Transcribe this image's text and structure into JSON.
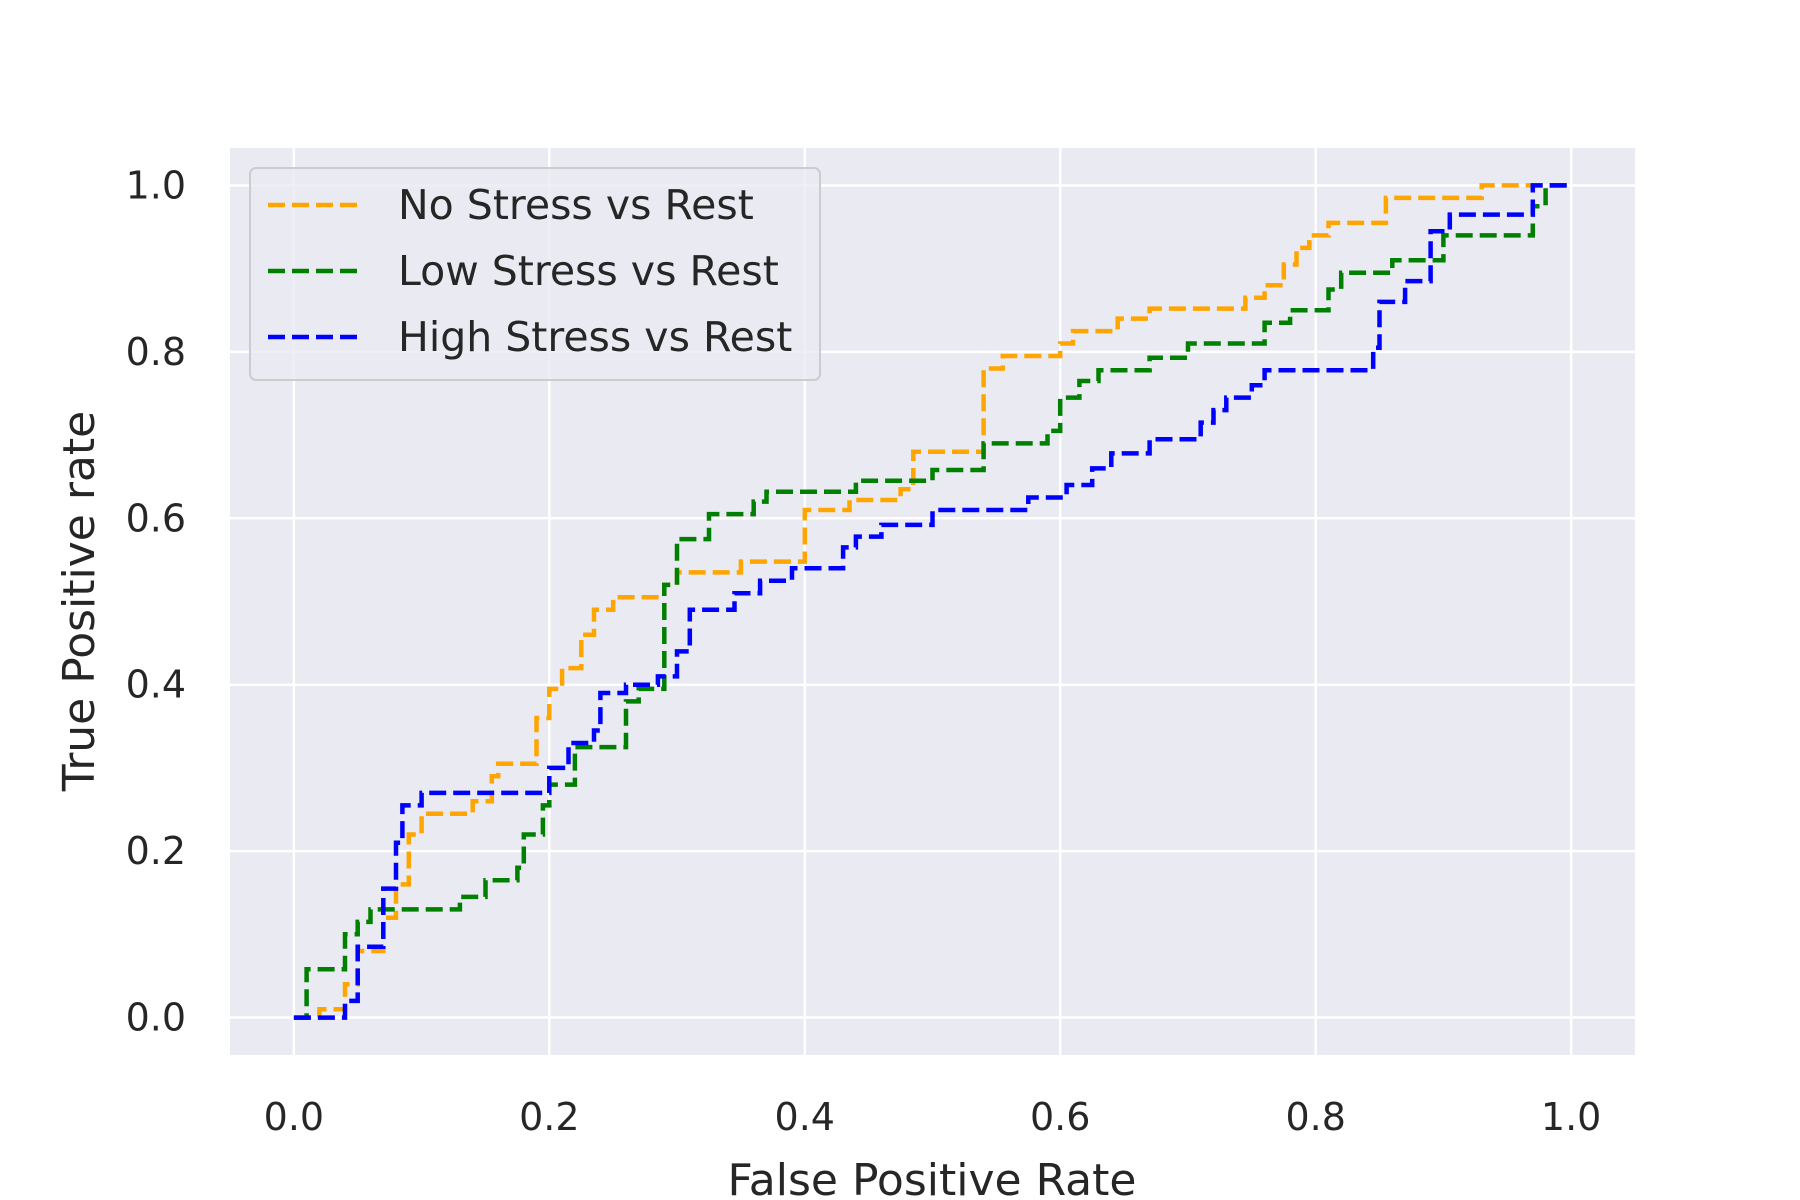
{
  "chart_data": {
    "type": "line",
    "title": "",
    "xlabel": "False Positive Rate",
    "ylabel": "True Positive rate",
    "xlim": [
      -0.05,
      1.05
    ],
    "ylim": [
      -0.045,
      1.045
    ],
    "xticks": [
      "0.0",
      "0.2",
      "0.4",
      "0.6",
      "0.8",
      "1.0"
    ],
    "yticks": [
      "0.0",
      "0.2",
      "0.4",
      "0.6",
      "0.8",
      "1.0"
    ],
    "grid": true,
    "legend_position": "top-left",
    "background": "#eaeaf2",
    "line_style": "dashed",
    "series": [
      {
        "name": "No Stress vs Rest",
        "color": "#ffa500",
        "points": [
          [
            0.0,
            0.0
          ],
          [
            0.02,
            0.0
          ],
          [
            0.02,
            0.01
          ],
          [
            0.04,
            0.01
          ],
          [
            0.04,
            0.04
          ],
          [
            0.05,
            0.04
          ],
          [
            0.05,
            0.08
          ],
          [
            0.07,
            0.08
          ],
          [
            0.07,
            0.12
          ],
          [
            0.08,
            0.12
          ],
          [
            0.08,
            0.16
          ],
          [
            0.09,
            0.16
          ],
          [
            0.09,
            0.22
          ],
          [
            0.1,
            0.22
          ],
          [
            0.1,
            0.245
          ],
          [
            0.14,
            0.245
          ],
          [
            0.14,
            0.26
          ],
          [
            0.155,
            0.26
          ],
          [
            0.155,
            0.29
          ],
          [
            0.16,
            0.29
          ],
          [
            0.16,
            0.305
          ],
          [
            0.19,
            0.305
          ],
          [
            0.19,
            0.36
          ],
          [
            0.2,
            0.36
          ],
          [
            0.2,
            0.395
          ],
          [
            0.21,
            0.395
          ],
          [
            0.21,
            0.42
          ],
          [
            0.225,
            0.42
          ],
          [
            0.225,
            0.46
          ],
          [
            0.235,
            0.46
          ],
          [
            0.235,
            0.49
          ],
          [
            0.25,
            0.49
          ],
          [
            0.25,
            0.505
          ],
          [
            0.29,
            0.505
          ],
          [
            0.29,
            0.52
          ],
          [
            0.3,
            0.52
          ],
          [
            0.3,
            0.535
          ],
          [
            0.35,
            0.535
          ],
          [
            0.35,
            0.548
          ],
          [
            0.4,
            0.548
          ],
          [
            0.4,
            0.61
          ],
          [
            0.435,
            0.61
          ],
          [
            0.435,
            0.622
          ],
          [
            0.475,
            0.622
          ],
          [
            0.475,
            0.635
          ],
          [
            0.485,
            0.635
          ],
          [
            0.485,
            0.68
          ],
          [
            0.54,
            0.68
          ],
          [
            0.54,
            0.78
          ],
          [
            0.555,
            0.78
          ],
          [
            0.555,
            0.795
          ],
          [
            0.6,
            0.795
          ],
          [
            0.6,
            0.81
          ],
          [
            0.61,
            0.81
          ],
          [
            0.61,
            0.825
          ],
          [
            0.645,
            0.825
          ],
          [
            0.645,
            0.84
          ],
          [
            0.67,
            0.84
          ],
          [
            0.67,
            0.852
          ],
          [
            0.745,
            0.852
          ],
          [
            0.745,
            0.865
          ],
          [
            0.76,
            0.865
          ],
          [
            0.76,
            0.88
          ],
          [
            0.775,
            0.88
          ],
          [
            0.775,
            0.905
          ],
          [
            0.785,
            0.905
          ],
          [
            0.785,
            0.925
          ],
          [
            0.795,
            0.925
          ],
          [
            0.795,
            0.94
          ],
          [
            0.81,
            0.94
          ],
          [
            0.81,
            0.955
          ],
          [
            0.855,
            0.955
          ],
          [
            0.855,
            0.985
          ],
          [
            0.93,
            0.985
          ],
          [
            0.93,
            1.0
          ],
          [
            1.0,
            1.0
          ]
        ]
      },
      {
        "name": "Low Stress vs Rest",
        "color": "#008000",
        "points": [
          [
            0.0,
            0.0
          ],
          [
            0.01,
            0.0
          ],
          [
            0.01,
            0.058
          ],
          [
            0.04,
            0.058
          ],
          [
            0.04,
            0.1
          ],
          [
            0.05,
            0.1
          ],
          [
            0.05,
            0.115
          ],
          [
            0.06,
            0.115
          ],
          [
            0.06,
            0.13
          ],
          [
            0.13,
            0.13
          ],
          [
            0.13,
            0.145
          ],
          [
            0.15,
            0.145
          ],
          [
            0.15,
            0.165
          ],
          [
            0.175,
            0.165
          ],
          [
            0.175,
            0.18
          ],
          [
            0.18,
            0.18
          ],
          [
            0.18,
            0.22
          ],
          [
            0.195,
            0.22
          ],
          [
            0.195,
            0.255
          ],
          [
            0.2,
            0.255
          ],
          [
            0.2,
            0.28
          ],
          [
            0.22,
            0.28
          ],
          [
            0.22,
            0.325
          ],
          [
            0.26,
            0.325
          ],
          [
            0.26,
            0.38
          ],
          [
            0.27,
            0.38
          ],
          [
            0.27,
            0.395
          ],
          [
            0.29,
            0.395
          ],
          [
            0.29,
            0.52
          ],
          [
            0.3,
            0.52
          ],
          [
            0.3,
            0.575
          ],
          [
            0.325,
            0.575
          ],
          [
            0.325,
            0.605
          ],
          [
            0.36,
            0.605
          ],
          [
            0.36,
            0.62
          ],
          [
            0.37,
            0.62
          ],
          [
            0.37,
            0.632
          ],
          [
            0.44,
            0.632
          ],
          [
            0.44,
            0.645
          ],
          [
            0.5,
            0.645
          ],
          [
            0.5,
            0.658
          ],
          [
            0.54,
            0.658
          ],
          [
            0.54,
            0.69
          ],
          [
            0.59,
            0.69
          ],
          [
            0.59,
            0.705
          ],
          [
            0.6,
            0.705
          ],
          [
            0.6,
            0.745
          ],
          [
            0.615,
            0.745
          ],
          [
            0.615,
            0.765
          ],
          [
            0.63,
            0.765
          ],
          [
            0.63,
            0.778
          ],
          [
            0.67,
            0.778
          ],
          [
            0.67,
            0.793
          ],
          [
            0.7,
            0.793
          ],
          [
            0.7,
            0.81
          ],
          [
            0.76,
            0.81
          ],
          [
            0.76,
            0.835
          ],
          [
            0.78,
            0.835
          ],
          [
            0.78,
            0.85
          ],
          [
            0.81,
            0.85
          ],
          [
            0.81,
            0.875
          ],
          [
            0.82,
            0.875
          ],
          [
            0.82,
            0.895
          ],
          [
            0.86,
            0.895
          ],
          [
            0.86,
            0.91
          ],
          [
            0.9,
            0.91
          ],
          [
            0.9,
            0.94
          ],
          [
            0.97,
            0.94
          ],
          [
            0.97,
            0.975
          ],
          [
            0.98,
            0.975
          ],
          [
            0.98,
            1.0
          ],
          [
            1.0,
            1.0
          ]
        ]
      },
      {
        "name": "High Stress vs Rest",
        "color": "#0000ff",
        "points": [
          [
            0.0,
            0.0
          ],
          [
            0.04,
            0.0
          ],
          [
            0.04,
            0.02
          ],
          [
            0.05,
            0.02
          ],
          [
            0.05,
            0.085
          ],
          [
            0.07,
            0.085
          ],
          [
            0.07,
            0.155
          ],
          [
            0.08,
            0.155
          ],
          [
            0.08,
            0.21
          ],
          [
            0.085,
            0.21
          ],
          [
            0.085,
            0.255
          ],
          [
            0.1,
            0.255
          ],
          [
            0.1,
            0.27
          ],
          [
            0.2,
            0.27
          ],
          [
            0.2,
            0.3
          ],
          [
            0.215,
            0.3
          ],
          [
            0.215,
            0.33
          ],
          [
            0.235,
            0.33
          ],
          [
            0.235,
            0.345
          ],
          [
            0.24,
            0.345
          ],
          [
            0.24,
            0.39
          ],
          [
            0.26,
            0.39
          ],
          [
            0.26,
            0.4
          ],
          [
            0.285,
            0.4
          ],
          [
            0.285,
            0.41
          ],
          [
            0.3,
            0.41
          ],
          [
            0.3,
            0.44
          ],
          [
            0.31,
            0.44
          ],
          [
            0.31,
            0.49
          ],
          [
            0.345,
            0.49
          ],
          [
            0.345,
            0.51
          ],
          [
            0.365,
            0.51
          ],
          [
            0.365,
            0.525
          ],
          [
            0.39,
            0.525
          ],
          [
            0.39,
            0.54
          ],
          [
            0.43,
            0.54
          ],
          [
            0.43,
            0.565
          ],
          [
            0.44,
            0.565
          ],
          [
            0.44,
            0.578
          ],
          [
            0.46,
            0.578
          ],
          [
            0.46,
            0.592
          ],
          [
            0.5,
            0.592
          ],
          [
            0.5,
            0.61
          ],
          [
            0.575,
            0.61
          ],
          [
            0.575,
            0.625
          ],
          [
            0.605,
            0.625
          ],
          [
            0.605,
            0.64
          ],
          [
            0.625,
            0.64
          ],
          [
            0.625,
            0.66
          ],
          [
            0.64,
            0.66
          ],
          [
            0.64,
            0.678
          ],
          [
            0.67,
            0.678
          ],
          [
            0.67,
            0.695
          ],
          [
            0.71,
            0.695
          ],
          [
            0.71,
            0.715
          ],
          [
            0.72,
            0.715
          ],
          [
            0.72,
            0.73
          ],
          [
            0.73,
            0.73
          ],
          [
            0.73,
            0.745
          ],
          [
            0.75,
            0.745
          ],
          [
            0.75,
            0.76
          ],
          [
            0.76,
            0.76
          ],
          [
            0.76,
            0.778
          ],
          [
            0.845,
            0.778
          ],
          [
            0.845,
            0.805
          ],
          [
            0.85,
            0.805
          ],
          [
            0.85,
            0.86
          ],
          [
            0.87,
            0.86
          ],
          [
            0.87,
            0.885
          ],
          [
            0.89,
            0.885
          ],
          [
            0.89,
            0.945
          ],
          [
            0.905,
            0.945
          ],
          [
            0.905,
            0.965
          ],
          [
            0.97,
            0.965
          ],
          [
            0.97,
            1.0
          ],
          [
            1.0,
            1.0
          ]
        ]
      }
    ]
  }
}
